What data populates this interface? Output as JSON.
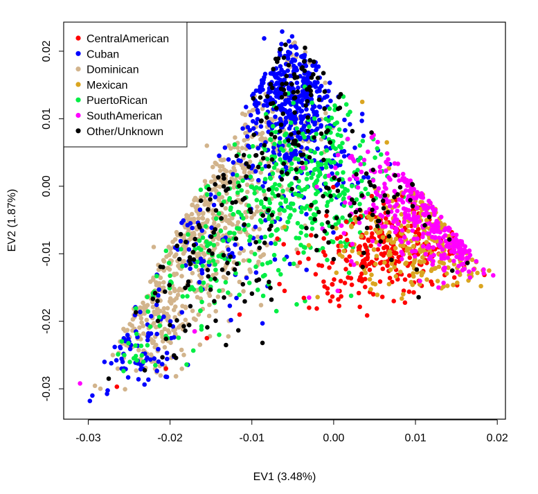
{
  "chart_data": {
    "type": "scatter",
    "xlabel": "EV1 (3.48%)",
    "ylabel": "EV2 (1.87%)",
    "xlim": [
      -0.033,
      0.021
    ],
    "ylim": [
      -0.0345,
      0.0243
    ],
    "xticks": [
      -0.03,
      -0.02,
      -0.01,
      0.0,
      0.01,
      0.02
    ],
    "xtick_labels": [
      "-0.03",
      "-0.02",
      "-0.01",
      "0.00",
      "0.01",
      "0.02"
    ],
    "yticks": [
      -0.03,
      -0.02,
      -0.01,
      0.0,
      0.01,
      0.02
    ],
    "ytick_labels": [
      "-0.03",
      "-0.02",
      "-0.01",
      "0.00",
      "0.01",
      "0.02"
    ],
    "grid": false,
    "legend_position": "top-left",
    "series": [
      {
        "name": "CentralAmerican",
        "color": "#ff0000",
        "clusters": [
          {
            "center": [
              0.007,
              -0.0085
            ],
            "spread": [
              0.0045,
              0.0035
            ],
            "n": 180
          },
          {
            "center": [
              0.002,
              -0.013
            ],
            "spread": [
              0.004,
              0.0025
            ],
            "n": 60
          },
          {
            "center": [
              0.0125,
              -0.0095
            ],
            "spread": [
              0.003,
              0.002
            ],
            "n": 40
          }
        ],
        "points": [
          [
            -0.0265,
            -0.0297
          ],
          [
            -0.0205,
            -0.027
          ],
          [
            -0.0155,
            -0.0225
          ],
          [
            -0.0115,
            -0.019
          ],
          [
            -0.006,
            -0.0155
          ],
          [
            -0.003,
            -0.018
          ]
        ]
      },
      {
        "name": "Cuban",
        "color": "#0000ff",
        "clusters": [
          {
            "center": [
              -0.005,
              0.014
            ],
            "spread": [
              0.0028,
              0.0045
            ],
            "n": 380
          },
          {
            "center": [
              -0.003,
              0.003
            ],
            "spread": [
              0.005,
              0.004
            ],
            "n": 110
          },
          {
            "center": [
              -0.016,
              -0.008
            ],
            "spread": [
              0.005,
              0.005
            ],
            "n": 70
          },
          {
            "center": [
              -0.024,
              -0.024
            ],
            "spread": [
              0.0028,
              0.004
            ],
            "n": 70
          }
        ],
        "points": [
          [
            -0.0295,
            -0.031
          ],
          [
            -0.0298,
            -0.0318
          ],
          [
            -0.0063,
            0.0229
          ],
          [
            -0.0085,
            0.0219
          ],
          [
            0.0035,
            0.0107
          ]
        ]
      },
      {
        "name": "Dominican",
        "color": "#d2b48c",
        "clusters": [
          {
            "center": [
              -0.017,
              -0.005
            ],
            "spread": [
              0.0045,
              0.006
            ],
            "n": 380
          },
          {
            "center": [
              -0.023,
              -0.019
            ],
            "spread": [
              0.0035,
              0.005
            ],
            "n": 200
          },
          {
            "center": [
              -0.01,
              0.006
            ],
            "spread": [
              0.004,
              0.004
            ],
            "n": 90
          },
          {
            "center": [
              -0.005,
              0.013
            ],
            "spread": [
              0.003,
              0.005
            ],
            "n": 50
          }
        ],
        "points": [
          [
            -0.022,
            -0.009
          ],
          [
            -0.027,
            -0.025
          ],
          [
            -0.0155,
            0.006
          ],
          [
            -0.0095,
            0.0088
          ]
        ]
      },
      {
        "name": "Mexican",
        "color": "#daa520",
        "clusters": [
          {
            "center": [
              0.012,
              -0.006
            ],
            "spread": [
              0.0045,
              0.004
            ],
            "n": 160
          },
          {
            "center": [
              0.006,
              -0.011
            ],
            "spread": [
              0.004,
              0.003
            ],
            "n": 60
          },
          {
            "center": [
              0.016,
              -0.011
            ],
            "spread": [
              0.0025,
              0.0018
            ],
            "n": 40
          }
        ],
        "points": [
          [
            0.0035,
            0.0125
          ],
          [
            0.0085,
            -0.016
          ],
          [
            0.018,
            -0.0148
          ],
          [
            0.019,
            -0.0125
          ],
          [
            0.0065,
            0.0065
          ]
        ]
      },
      {
        "name": "PuertoRican",
        "color": "#00ee44",
        "clusters": [
          {
            "center": [
              -0.005,
              -0.003
            ],
            "spread": [
              0.0055,
              0.005
            ],
            "n": 280
          },
          {
            "center": [
              -0.001,
              0.006
            ],
            "spread": [
              0.004,
              0.004
            ],
            "n": 110
          },
          {
            "center": [
              -0.018,
              -0.012
            ],
            "spread": [
              0.004,
              0.004
            ],
            "n": 60
          },
          {
            "center": [
              -0.024,
              -0.024
            ],
            "spread": [
              0.003,
              0.003
            ],
            "n": 25
          }
        ],
        "points": [
          [
            -0.007,
            -0.0185
          ],
          [
            -0.0035,
            -0.017
          ],
          [
            -0.014,
            -0.022
          ],
          [
            0.002,
            0.011
          ]
        ]
      },
      {
        "name": "SouthAmerican",
        "color": "#ff00ff",
        "clusters": [
          {
            "center": [
              0.012,
              -0.003
            ],
            "spread": [
              0.004,
              0.0035
            ],
            "n": 200
          },
          {
            "center": [
              0.016,
              -0.009
            ],
            "spread": [
              0.002,
              0.002
            ],
            "n": 80
          },
          {
            "center": [
              0.006,
              0.002
            ],
            "spread": [
              0.004,
              0.003
            ],
            "n": 40
          }
        ],
        "points": [
          [
            -0.031,
            -0.0292
          ],
          [
            0.0195,
            -0.0132
          ],
          [
            -0.003,
            -0.0165
          ],
          [
            0.0005,
            -0.0155
          ],
          [
            -0.017,
            -0.0215
          ]
        ]
      },
      {
        "name": "Other/Unknown",
        "color": "#000000",
        "clusters": [
          {
            "center": [
              -0.004,
              0.015
            ],
            "spread": [
              0.0025,
              0.004
            ],
            "n": 60
          },
          {
            "center": [
              -0.008,
              0.002
            ],
            "spread": [
              0.007,
              0.006
            ],
            "n": 90
          },
          {
            "center": [
              -0.018,
              -0.013
            ],
            "spread": [
              0.005,
              0.007
            ],
            "n": 70
          },
          {
            "center": [
              0.006,
              -0.004
            ],
            "spread": [
              0.006,
              0.005
            ],
            "n": 50
          }
        ],
        "points": [
          [
            -0.0087,
            -0.0232
          ],
          [
            -0.0275,
            -0.0285
          ],
          [
            0.0145,
            -0.0125
          ],
          [
            -0.0035,
            0.0205
          ]
        ]
      }
    ]
  }
}
